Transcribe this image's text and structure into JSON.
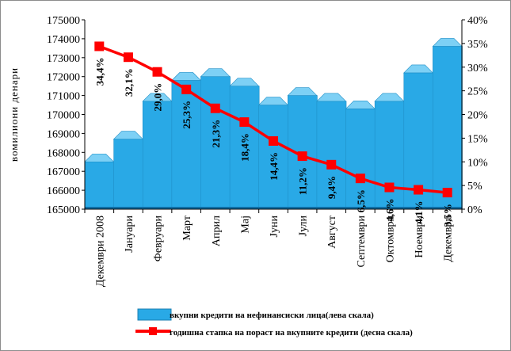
{
  "chart_data": {
    "type": "bar+line",
    "categories": [
      "Декември 2008",
      "Јануари",
      "Февруари",
      "Март",
      "Април",
      "Мај",
      "Јуни",
      "Јули",
      "Август",
      "Септември",
      "Октомври",
      "Ноември",
      "Декември"
    ],
    "series": [
      {
        "name": "вкупни кредити на нефинансиски лица(лева скала)",
        "type": "bar",
        "axis": "left",
        "color": "#29A9E6",
        "values": [
          167500,
          168700,
          170700,
          171800,
          172000,
          171500,
          170500,
          171000,
          170700,
          170300,
          170700,
          172200,
          173600
        ]
      },
      {
        "name": "годишна стапка на пораст на вкупните кредити (десна скала)",
        "type": "line",
        "axis": "right",
        "color": "#FF0000",
        "values": [
          34.4,
          32.1,
          29.0,
          25.3,
          21.3,
          18.4,
          14.4,
          11.2,
          9.4,
          6.5,
          4.6,
          4.1,
          3.5
        ]
      }
    ],
    "data_labels": [
      "34,4%",
      "32,1%",
      "29,0%",
      "25,3%",
      "21,3%",
      "18,4%",
      "14,4%",
      "11,2%",
      "9,4%",
      "6,5%",
      "4,6%",
      "4,1%",
      "3,5%"
    ],
    "left_axis": {
      "label": "вомилиони денари",
      "range": [
        165000,
        175000
      ],
      "ticks": [
        "165000",
        "166000",
        "167000",
        "168000",
        "169000",
        "170000",
        "171000",
        "172000",
        "173000",
        "174000",
        "175000"
      ]
    },
    "right_axis": {
      "range": [
        0,
        40
      ],
      "ticks": [
        "0%",
        "5%",
        "10%",
        "15%",
        "20%",
        "25%",
        "30%",
        "35%",
        "40%"
      ]
    },
    "grid": false,
    "legend_position": "bottom"
  }
}
